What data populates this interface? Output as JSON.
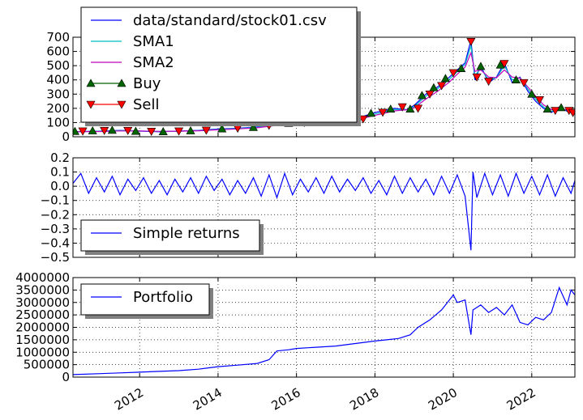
{
  "chart_data": [
    {
      "type": "line",
      "panel": "price",
      "ylim": [
        0,
        700
      ],
      "yticks": [
        "0",
        "100",
        "200",
        "300",
        "400",
        "500",
        "600",
        "700"
      ],
      "grid": true,
      "legend_placement": "upper-left",
      "series": [
        {
          "name": "data/standard/stock01.csv",
          "color": "#0000ff",
          "marker": "none",
          "x": [
            2010.3,
            2011.0,
            2011.5,
            2012.0,
            2012.5,
            2013.0,
            2013.5,
            2014.0,
            2014.5,
            2015.0,
            2015.5,
            2016.0,
            2016.5,
            2017.0,
            2017.5,
            2018.0,
            2018.5,
            2018.8,
            2019.0,
            2019.3,
            2019.6,
            2019.9,
            2020.1,
            2020.3,
            2020.45,
            2020.55,
            2020.7,
            2020.9,
            2021.1,
            2021.3,
            2021.5,
            2021.7,
            2021.9,
            2022.1,
            2022.3,
            2022.5,
            2022.7,
            2022.9,
            2023.1
          ],
          "y": [
            35,
            40,
            45,
            40,
            35,
            40,
            45,
            55,
            60,
            70,
            90,
            100,
            105,
            110,
            125,
            170,
            200,
            190,
            220,
            300,
            350,
            420,
            470,
            520,
            680,
            400,
            500,
            380,
            420,
            520,
            380,
            420,
            320,
            250,
            200,
            170,
            210,
            180,
            165
          ]
        },
        {
          "name": "SMA1",
          "color": "#00bfbf",
          "marker": "none",
          "x": [
            2010.3,
            2011.0,
            2011.5,
            2012.0,
            2012.5,
            2013.0,
            2013.5,
            2014.0,
            2014.5,
            2015.0,
            2015.5,
            2016.0,
            2016.5,
            2017.0,
            2017.5,
            2018.0,
            2018.5,
            2018.8,
            2019.0,
            2019.3,
            2019.6,
            2019.9,
            2020.1,
            2020.3,
            2020.45,
            2020.55,
            2020.7,
            2020.9,
            2021.1,
            2021.3,
            2021.5,
            2021.7,
            2021.9,
            2022.1,
            2022.3,
            2022.5,
            2022.7,
            2022.9,
            2023.1
          ],
          "y": [
            35,
            39,
            43,
            41,
            37,
            39,
            44,
            52,
            58,
            67,
            85,
            97,
            103,
            108,
            121,
            160,
            192,
            192,
            212,
            285,
            338,
            405,
            458,
            508,
            640,
            430,
            480,
            400,
            415,
            500,
            400,
            415,
            335,
            265,
            210,
            178,
            202,
            185,
            170
          ]
        },
        {
          "name": "SMA2",
          "color": "#bf00bf",
          "marker": "none",
          "x": [
            2010.3,
            2011.0,
            2011.5,
            2012.0,
            2012.5,
            2013.0,
            2013.5,
            2014.0,
            2014.5,
            2015.0,
            2015.5,
            2016.0,
            2016.5,
            2017.0,
            2017.5,
            2018.0,
            2018.5,
            2018.8,
            2019.0,
            2019.3,
            2019.6,
            2019.9,
            2020.1,
            2020.3,
            2020.45,
            2020.55,
            2020.7,
            2020.9,
            2021.1,
            2021.3,
            2021.5,
            2021.7,
            2021.9,
            2022.1,
            2022.3,
            2022.5,
            2022.7,
            2022.9,
            2023.1
          ],
          "y": [
            35,
            37,
            41,
            41,
            38,
            39,
            42,
            49,
            55,
            63,
            80,
            93,
            100,
            106,
            117,
            150,
            182,
            190,
            204,
            265,
            320,
            385,
            440,
            490,
            590,
            460,
            470,
            420,
            415,
            470,
            420,
            412,
            350,
            285,
            225,
            190,
            198,
            188,
            175
          ]
        },
        {
          "name": "Buy",
          "color": "#006400",
          "marker": "triangle-up",
          "x": [
            2010.35,
            2010.8,
            2011.3,
            2011.9,
            2012.6,
            2013.3,
            2014.1,
            2014.9,
            2015.8,
            2016.7,
            2017.4,
            2017.9,
            2018.4,
            2018.9,
            2019.2,
            2019.5,
            2019.8,
            2020.2,
            2020.7,
            2021.2,
            2021.6,
            2022.0,
            2022.4,
            2022.75
          ],
          "y": [
            38,
            42,
            46,
            39,
            36,
            42,
            56,
            66,
            95,
            104,
            118,
            165,
            195,
            195,
            290,
            345,
            410,
            480,
            495,
            505,
            400,
            300,
            195,
            205
          ]
        },
        {
          "name": "Sell",
          "color": "#ff0000",
          "marker": "triangle-down",
          "x": [
            2010.55,
            2011.1,
            2011.7,
            2012.3,
            2013.0,
            2013.7,
            2014.5,
            2015.3,
            2016.2,
            2017.1,
            2017.7,
            2018.2,
            2018.7,
            2019.1,
            2019.4,
            2019.7,
            2020.0,
            2020.45,
            2020.6,
            2020.9,
            2021.3,
            2021.8,
            2022.2,
            2022.6,
            2022.95,
            2023.05
          ],
          "y": [
            40,
            44,
            44,
            38,
            40,
            46,
            60,
            80,
            100,
            112,
            125,
            172,
            210,
            200,
            300,
            360,
            450,
            670,
            420,
            390,
            515,
            380,
            260,
            185,
            185,
            170
          ]
        }
      ]
    },
    {
      "type": "line",
      "panel": "returns",
      "ylim": [
        -0.5,
        0.2
      ],
      "yticks": [
        "−0.5",
        "−0.4",
        "−0.3",
        "−0.2",
        "−0.1",
        "0.0",
        "0.1",
        "0.2"
      ],
      "grid": true,
      "legend_placement": "lower-left",
      "series": [
        {
          "name": "Simple returns",
          "color": "#0000ff",
          "x": [
            2010.3,
            2010.5,
            2010.7,
            2010.9,
            2011.1,
            2011.3,
            2011.5,
            2011.7,
            2011.9,
            2012.1,
            2012.3,
            2012.5,
            2012.7,
            2012.9,
            2013.1,
            2013.3,
            2013.5,
            2013.7,
            2013.9,
            2014.1,
            2014.3,
            2014.5,
            2014.7,
            2014.9,
            2015.1,
            2015.3,
            2015.5,
            2015.7,
            2015.9,
            2016.1,
            2016.3,
            2016.5,
            2016.7,
            2016.9,
            2017.1,
            2017.3,
            2017.5,
            2017.7,
            2017.9,
            2018.1,
            2018.3,
            2018.5,
            2018.7,
            2018.9,
            2019.1,
            2019.3,
            2019.5,
            2019.7,
            2019.9,
            2020.1,
            2020.3,
            2020.45,
            2020.5,
            2020.6,
            2020.8,
            2021.0,
            2021.2,
            2021.4,
            2021.6,
            2021.8,
            2022.0,
            2022.2,
            2022.4,
            2022.6,
            2022.8,
            2023.0,
            2023.1
          ],
          "y": [
            0.02,
            0.09,
            -0.05,
            0.06,
            -0.04,
            0.07,
            -0.06,
            0.05,
            -0.03,
            0.06,
            -0.05,
            0.04,
            -0.06,
            0.05,
            -0.04,
            0.06,
            -0.05,
            0.07,
            -0.03,
            0.05,
            -0.06,
            0.04,
            -0.05,
            0.06,
            -0.07,
            0.08,
            -0.08,
            0.09,
            -0.06,
            0.05,
            -0.04,
            0.06,
            -0.05,
            0.07,
            -0.04,
            0.05,
            -0.03,
            0.06,
            -0.05,
            0.04,
            -0.06,
            0.07,
            -0.05,
            0.06,
            -0.04,
            0.05,
            -0.06,
            0.07,
            -0.05,
            0.08,
            -0.07,
            -0.45,
            0.1,
            -0.08,
            0.09,
            -0.06,
            0.08,
            -0.07,
            0.09,
            -0.05,
            0.07,
            -0.06,
            0.08,
            -0.07,
            0.06,
            -0.05,
            0.04
          ]
        }
      ]
    },
    {
      "type": "line",
      "panel": "portfolio",
      "ylim": [
        0,
        4000000
      ],
      "yticks": [
        "0",
        "500000",
        "1000000",
        "1500000",
        "2000000",
        "2500000",
        "3000000",
        "3500000",
        "4000000"
      ],
      "grid": true,
      "legend_placement": "upper-left",
      "series": [
        {
          "name": "Portfolio",
          "color": "#0000ff",
          "x": [
            2010.3,
            2011.0,
            2011.5,
            2012.0,
            2012.5,
            2013.0,
            2013.5,
            2014.0,
            2014.5,
            2015.0,
            2015.3,
            2015.5,
            2015.8,
            2016.0,
            2016.5,
            2017.0,
            2017.5,
            2018.0,
            2018.3,
            2018.6,
            2018.9,
            2019.1,
            2019.4,
            2019.7,
            2020.0,
            2020.1,
            2020.3,
            2020.45,
            2020.5,
            2020.7,
            2020.9,
            2021.1,
            2021.3,
            2021.5,
            2021.7,
            2021.9,
            2022.1,
            2022.3,
            2022.5,
            2022.7,
            2022.9,
            2023.0,
            2023.1
          ],
          "y": [
            100000,
            140000,
            170000,
            200000,
            230000,
            260000,
            320000,
            420000,
            480000,
            550000,
            700000,
            1050000,
            1100000,
            1150000,
            1200000,
            1250000,
            1350000,
            1450000,
            1500000,
            1550000,
            1700000,
            2000000,
            2300000,
            2700000,
            3300000,
            3000000,
            3100000,
            1700000,
            2700000,
            2900000,
            2600000,
            2800000,
            2500000,
            2900000,
            2200000,
            2100000,
            2400000,
            2300000,
            2600000,
            3600000,
            2900000,
            3500000,
            3300000
          ]
        }
      ]
    }
  ],
  "xaxis": {
    "xlim": [
      2010.3,
      2023.1
    ],
    "ticks": [
      2012,
      2014,
      2016,
      2018,
      2020,
      2022
    ],
    "tick_labels": [
      "2012",
      "2014",
      "2016",
      "2018",
      "2020",
      "2022"
    ]
  }
}
